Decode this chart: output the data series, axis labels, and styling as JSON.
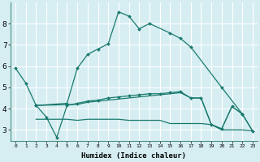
{
  "xlabel": "Humidex (Indice chaleur)",
  "background_color": "#d6eef2",
  "grid_color": "#ffffff",
  "line_color": "#1a7a6e",
  "xlim": [
    -0.5,
    23.5
  ],
  "ylim": [
    2.5,
    9.0
  ],
  "xticks": [
    0,
    1,
    2,
    3,
    4,
    5,
    6,
    7,
    8,
    9,
    10,
    11,
    12,
    13,
    14,
    15,
    16,
    17,
    18,
    19,
    20,
    21,
    22,
    23
  ],
  "yticks": [
    3,
    4,
    5,
    6,
    7,
    8
  ],
  "lines": [
    {
      "x": [
        0,
        1,
        2,
        5,
        6,
        7,
        8,
        9,
        10,
        11,
        12,
        13,
        15,
        16,
        17,
        20,
        22
      ],
      "y": [
        5.9,
        5.2,
        4.15,
        4.25,
        5.9,
        6.55,
        6.8,
        7.05,
        8.55,
        8.35,
        7.75,
        8.0,
        7.55,
        7.3,
        6.9,
        5.0,
        3.75
      ],
      "marker": true
    },
    {
      "x": [
        2,
        3,
        4,
        5,
        6,
        7,
        8,
        9,
        10,
        11,
        12,
        13,
        14,
        15,
        16,
        17,
        18,
        19,
        20,
        21,
        22,
        23
      ],
      "y": [
        4.15,
        3.6,
        2.65,
        4.15,
        4.25,
        4.35,
        4.4,
        4.5,
        4.55,
        4.6,
        4.65,
        4.7,
        4.7,
        4.75,
        4.8,
        4.5,
        4.5,
        3.25,
        3.05,
        4.1,
        3.75,
        2.95
      ],
      "marker": true
    },
    {
      "x": [
        2,
        6,
        7,
        8,
        9,
        10,
        11,
        12,
        13,
        14,
        15,
        16,
        17,
        18,
        19,
        20,
        21,
        22,
        23
      ],
      "y": [
        4.15,
        4.2,
        4.3,
        4.35,
        4.4,
        4.45,
        4.5,
        4.55,
        4.6,
        4.65,
        4.7,
        4.75,
        4.5,
        4.5,
        3.25,
        3.05,
        4.1,
        3.75,
        2.95
      ],
      "marker": false
    },
    {
      "x": [
        2,
        5,
        6,
        7,
        8,
        9,
        10,
        11,
        12,
        13,
        14,
        15,
        16,
        17,
        18,
        19,
        20,
        21,
        22,
        23
      ],
      "y": [
        3.5,
        3.5,
        3.45,
        3.5,
        3.5,
        3.5,
        3.5,
        3.45,
        3.45,
        3.45,
        3.45,
        3.3,
        3.3,
        3.3,
        3.3,
        3.25,
        3.0,
        3.0,
        3.0,
        2.95
      ],
      "marker": false
    }
  ]
}
